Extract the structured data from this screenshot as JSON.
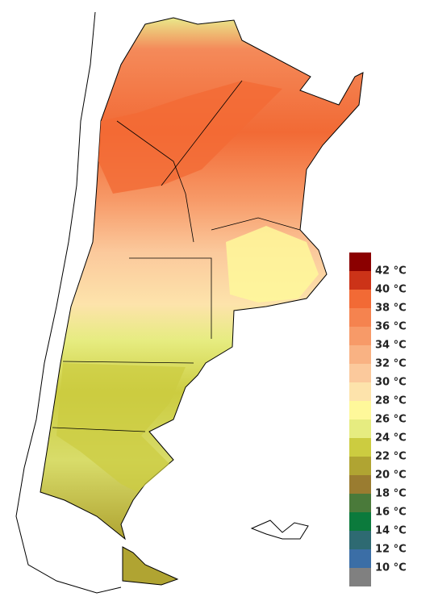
{
  "legend": {
    "labels": [
      "42 °C",
      "40 °C",
      "38 °C",
      "36 °C",
      "34 °C",
      "32 °C",
      "30 °C",
      "28 °C",
      "26 °C",
      "24 °C",
      "22 °C",
      "20 °C",
      "18 °C",
      "16 °C",
      "14 °C",
      "12 °C",
      "10 °C"
    ],
    "colors": [
      "#8b0000",
      "#cc3318",
      "#f26a35",
      "#f5834f",
      "#f79a68",
      "#f9b283",
      "#fbc99c",
      "#fde3ab",
      "#fef89a",
      "#e6ec80",
      "#cccc40",
      "#b0a432",
      "#9a7c30",
      "#4a7a3a",
      "#0b7a3c",
      "#2e6a72",
      "#3b6ea6",
      "#808080"
    ]
  }
}
